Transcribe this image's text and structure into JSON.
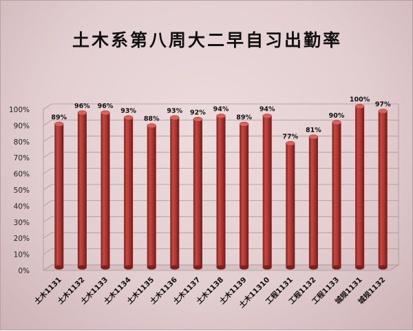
{
  "chart_data": {
    "type": "bar",
    "title": "土木系第八周大二早自习出勤率",
    "categories": [
      "土木1131",
      "土木1132",
      "土木1133",
      "土木1134",
      "土木1135",
      "土木1136",
      "土木1137",
      "土木1138",
      "土木1139",
      "土木11310",
      "工程1131",
      "工程1132",
      "工程1133",
      "城规1131",
      "城规1132"
    ],
    "values": [
      89,
      96,
      96,
      93,
      88,
      93,
      92,
      94,
      89,
      94,
      77,
      81,
      90,
      100,
      97
    ],
    "value_labels": [
      "89%",
      "96%",
      "96%",
      "93%",
      "88%",
      "93%",
      "92%",
      "94%",
      "89%",
      "94%",
      "77%",
      "81%",
      "90%",
      "100%",
      "97%"
    ],
    "y_ticks": [
      "0%",
      "10%",
      "20%",
      "30%",
      "40%",
      "50%",
      "60%",
      "70%",
      "80%",
      "90%",
      "100%"
    ],
    "ylim": [
      0,
      100
    ],
    "xlabel": "",
    "ylabel": "",
    "grid": true,
    "legend": "none",
    "colors": {
      "bar": "#b23a36",
      "bar_dark": "#7e1f1d",
      "bar_light": "#d9625a",
      "grid": "#a99597"
    }
  }
}
